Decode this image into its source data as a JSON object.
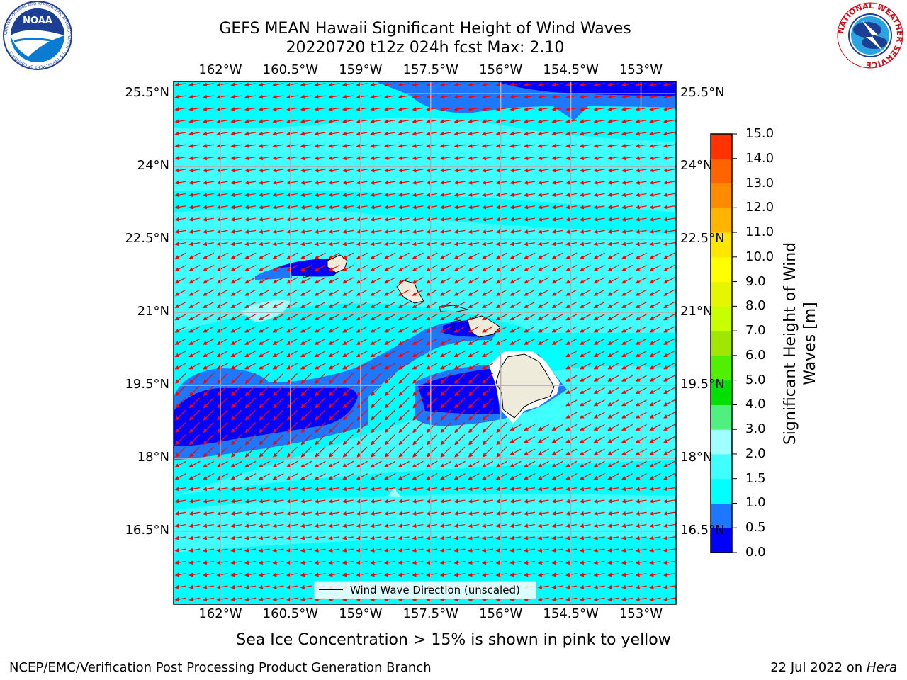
{
  "header": {
    "title_line1": "GEFS MEAN Hawaii Significant Height of Wind Waves",
    "title_line2": "20220720 t12z 024h fcst   Max: 2.10"
  },
  "logos": {
    "left": "noaa-logo",
    "left_text": "NOAA",
    "left_ring_text": "NATIONAL OCEANIC AND ATMOSPHERIC ADMINISTRATION · U.S. DEPARTMENT OF COMMERCE",
    "right": "national-weather-service-logo",
    "right_ring_text": "NATIONAL WEATHER SERVICE"
  },
  "map": {
    "lon_ticks": [
      "162°W",
      "160.5°W",
      "159°W",
      "157.5°W",
      "156°W",
      "154.5°W",
      "153°W"
    ],
    "lat_ticks": [
      "25.5°N",
      "24°N",
      "22.5°N",
      "21°N",
      "19.5°N",
      "18°N",
      "16.5°N"
    ],
    "lon_values": [
      -162,
      -160.5,
      -159,
      -157.5,
      -156,
      -154.5,
      -153
    ],
    "lat_values": [
      25.5,
      24,
      22.5,
      21,
      19.5,
      18,
      16.5
    ],
    "lon_range": [
      -163,
      -152.25
    ],
    "lat_range": [
      15,
      25.75
    ],
    "grid": true,
    "legend_label": "Wind Wave Direction (unscaled)",
    "vector_color": "#ff0000",
    "land_color": "#efebdb"
  },
  "colorbar": {
    "label": "Significant Height of Wind Waves [m]",
    "ticks": [
      "0.0",
      "0.5",
      "1.0",
      "1.5",
      "2.0",
      "3.0",
      "4.0",
      "5.0",
      "6.0",
      "7.0",
      "8.0",
      "9.0",
      "10.0",
      "11.0",
      "12.0",
      "13.0",
      "14.0",
      "15.0"
    ],
    "colors": [
      "#0000ff",
      "#1e78ff",
      "#00ffff",
      "#40ffff",
      "#a0ffff",
      "#50f080",
      "#00e000",
      "#50f000",
      "#a0e600",
      "#c8ff00",
      "#e6f500",
      "#ffff00",
      "#ffe600",
      "#ffb400",
      "#ff8c00",
      "#ff6400",
      "#ff3200",
      "#ff0000"
    ]
  },
  "footer": {
    "note": "Sea Ice Concentration > 15% is shown in pink to yellow",
    "left": "NCEP/EMC/Verification Post Processing Product Generation Branch",
    "date": "22 Jul 2022 on ",
    "machine": "Hera"
  }
}
